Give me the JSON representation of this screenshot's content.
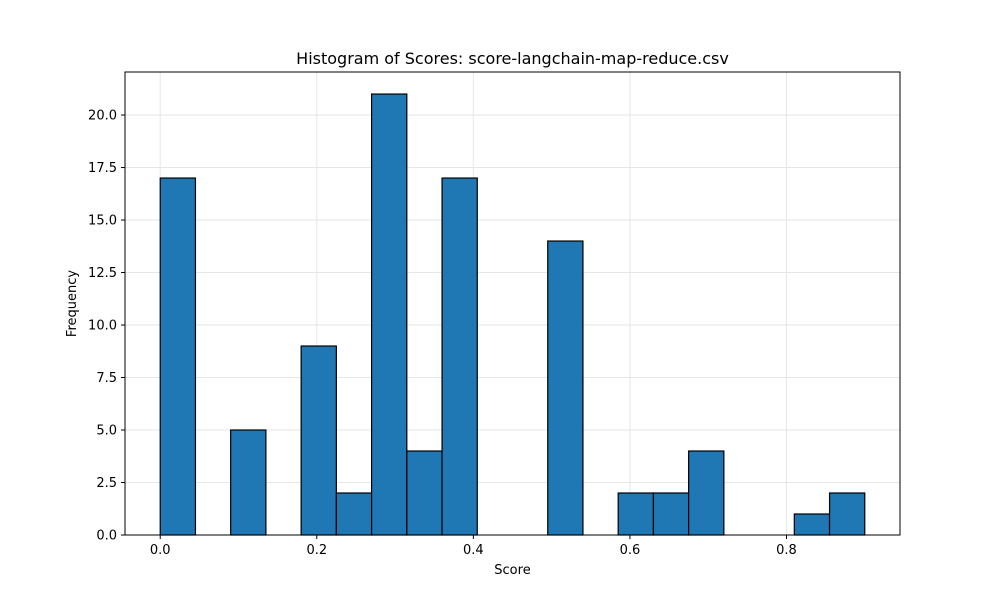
{
  "chart_data": {
    "type": "bar",
    "title": "Histogram of Scores: score-langchain-map-reduce.csv",
    "xlabel": "Score",
    "ylabel": "Frequency",
    "xlim": [
      -0.045,
      0.945
    ],
    "ylim": [
      0,
      22.05
    ],
    "xticks": [
      {
        "value": 0.0,
        "label": "0.0"
      },
      {
        "value": 0.2,
        "label": "0.2"
      },
      {
        "value": 0.4,
        "label": "0.4"
      },
      {
        "value": 0.6,
        "label": "0.6"
      },
      {
        "value": 0.8,
        "label": "0.8"
      }
    ],
    "yticks": [
      {
        "value": 0.0,
        "label": "0.0"
      },
      {
        "value": 2.5,
        "label": "2.5"
      },
      {
        "value": 5.0,
        "label": "5.0"
      },
      {
        "value": 7.5,
        "label": "7.5"
      },
      {
        "value": 10.0,
        "label": "10.0"
      },
      {
        "value": 12.5,
        "label": "12.5"
      },
      {
        "value": 15.0,
        "label": "15.0"
      },
      {
        "value": 17.5,
        "label": "17.5"
      },
      {
        "value": 20.0,
        "label": "20.0"
      }
    ],
    "bins": [
      {
        "start": 0.0,
        "end": 0.045,
        "count": 17
      },
      {
        "start": 0.045,
        "end": 0.09,
        "count": 0
      },
      {
        "start": 0.09,
        "end": 0.135,
        "count": 5
      },
      {
        "start": 0.135,
        "end": 0.18,
        "count": 0
      },
      {
        "start": 0.18,
        "end": 0.225,
        "count": 9
      },
      {
        "start": 0.225,
        "end": 0.27,
        "count": 2
      },
      {
        "start": 0.27,
        "end": 0.315,
        "count": 21
      },
      {
        "start": 0.315,
        "end": 0.36,
        "count": 4
      },
      {
        "start": 0.36,
        "end": 0.405,
        "count": 17
      },
      {
        "start": 0.405,
        "end": 0.45,
        "count": 0
      },
      {
        "start": 0.45,
        "end": 0.495,
        "count": 0
      },
      {
        "start": 0.495,
        "end": 0.54,
        "count": 14
      },
      {
        "start": 0.54,
        "end": 0.585,
        "count": 0
      },
      {
        "start": 0.585,
        "end": 0.63,
        "count": 2
      },
      {
        "start": 0.63,
        "end": 0.675,
        "count": 2
      },
      {
        "start": 0.675,
        "end": 0.72,
        "count": 4
      },
      {
        "start": 0.72,
        "end": 0.765,
        "count": 0
      },
      {
        "start": 0.765,
        "end": 0.81,
        "count": 0
      },
      {
        "start": 0.81,
        "end": 0.855,
        "count": 1
      },
      {
        "start": 0.855,
        "end": 0.9,
        "count": 2
      }
    ],
    "grid": true,
    "colors": {
      "bar_fill": "#1f77b4",
      "bar_edge": "#000000",
      "grid": "#e6e6e6",
      "axes": "#000000"
    }
  }
}
